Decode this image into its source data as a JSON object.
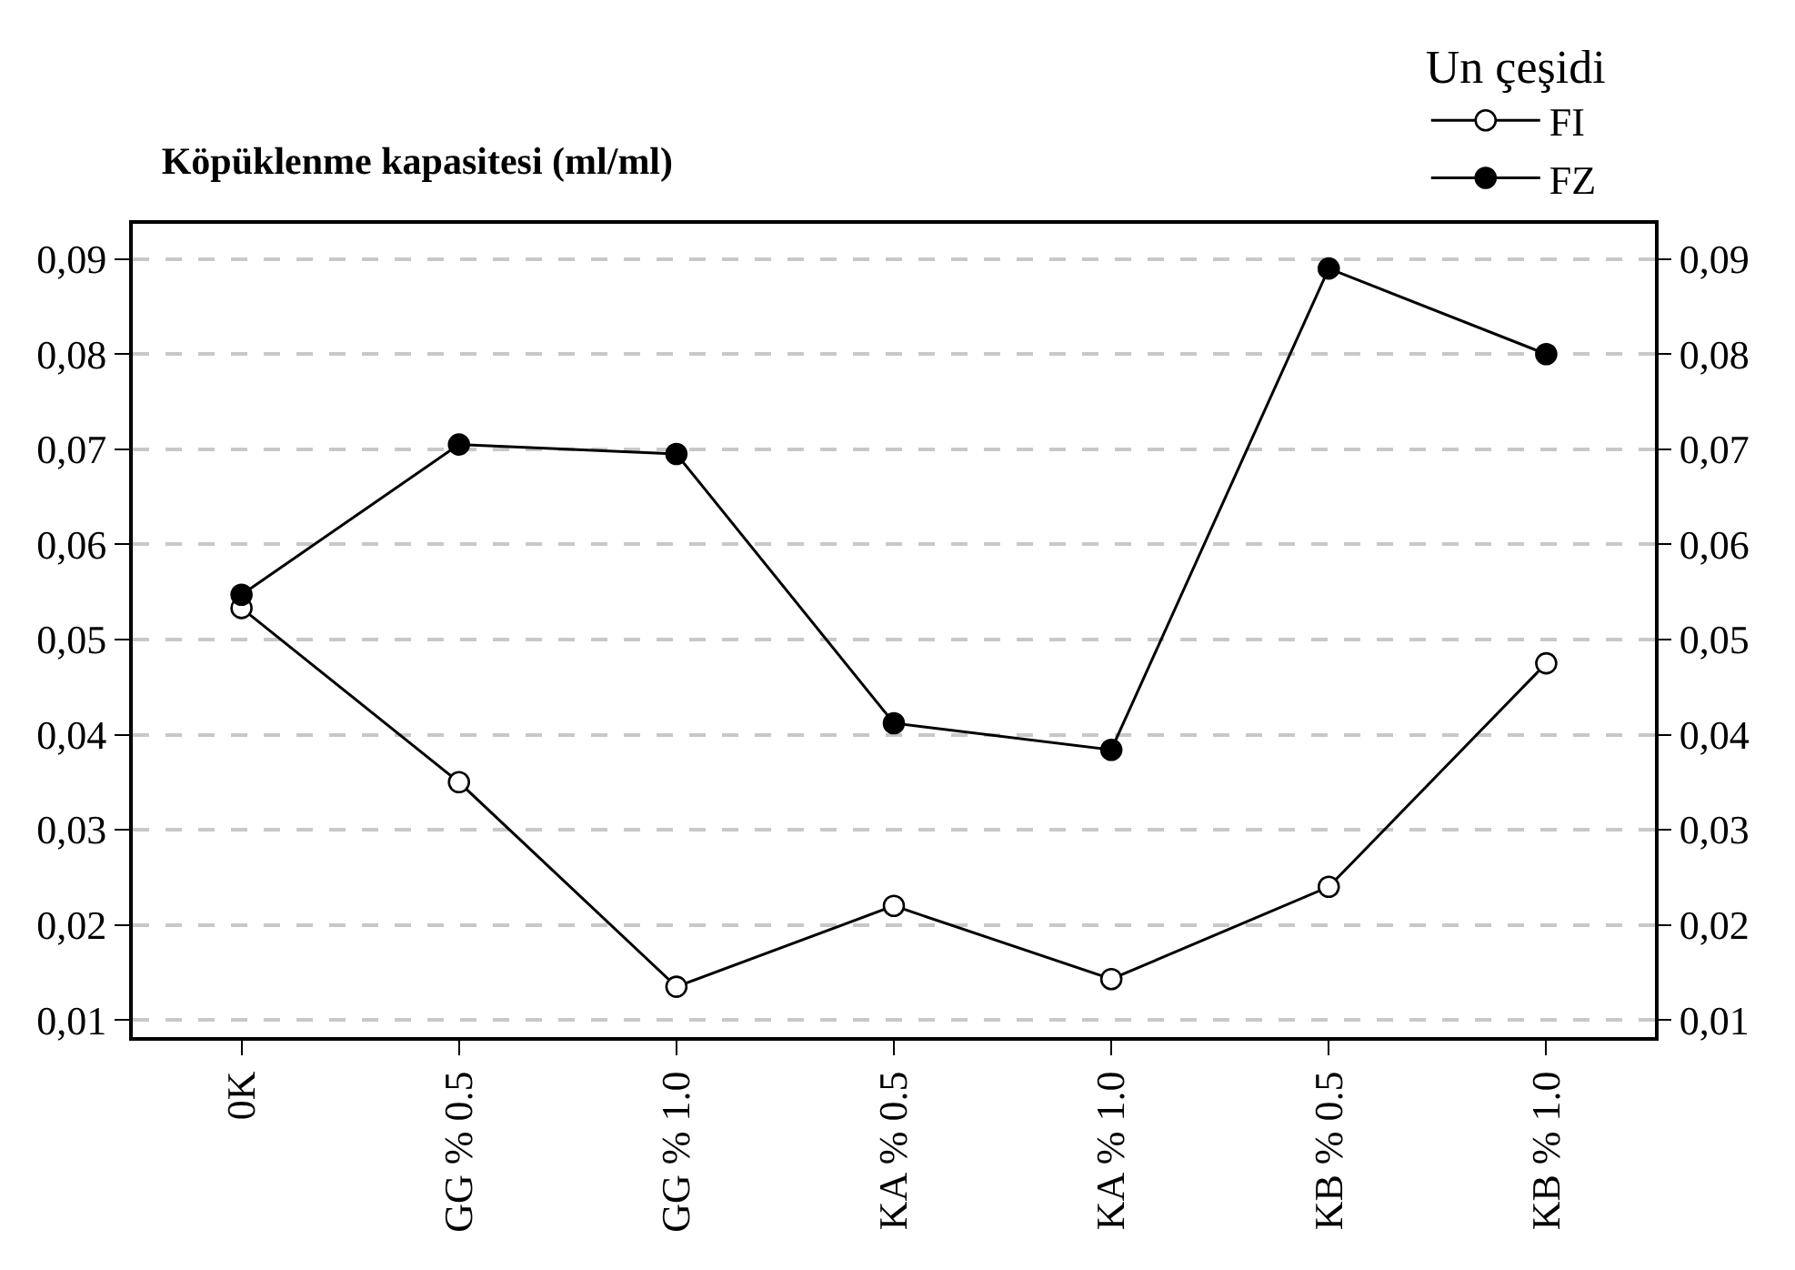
{
  "chart_data": {
    "type": "line",
    "title": "Köpüklenme kapasitesi (ml/ml)",
    "legend_title": "Un çeşidi",
    "categories": [
      "0K",
      "GG % 0.5",
      "GG % 1.0",
      "KA % 0.5",
      "KA % 1.0",
      "KB % 0.5",
      "KB % 1.0"
    ],
    "series": [
      {
        "name": "FI",
        "color": "#000000",
        "values": [
          0.0533,
          0.035,
          0.0135,
          0.022,
          0.0143,
          0.024,
          0.0475
        ]
      },
      {
        "name": "FZ",
        "color": "#000000",
        "values": [
          0.0547,
          0.0705,
          0.0695,
          0.0412,
          0.0384,
          0.089,
          0.08
        ]
      }
    ],
    "ylim": [
      0.0082,
      0.0937
    ],
    "yticks": [
      {
        "value": 0.01,
        "label": "0,01"
      },
      {
        "value": 0.02,
        "label": "0,02"
      },
      {
        "value": 0.03,
        "label": "0,03"
      },
      {
        "value": 0.04,
        "label": "0,04"
      },
      {
        "value": 0.05,
        "label": "0,05"
      },
      {
        "value": 0.06,
        "label": "0,06"
      },
      {
        "value": 0.07,
        "label": "0,07"
      },
      {
        "value": 0.08,
        "label": "0,08"
      },
      {
        "value": 0.09,
        "label": "0,09"
      }
    ],
    "y2lim": [
      0.0082,
      0.0937
    ],
    "y2ticks": [
      {
        "value": 0.01,
        "label": "0,01"
      },
      {
        "value": 0.02,
        "label": "0,02"
      },
      {
        "value": 0.03,
        "label": "0,03"
      },
      {
        "value": 0.04,
        "label": "0,04"
      },
      {
        "value": 0.05,
        "label": "0,05"
      },
      {
        "value": 0.06,
        "label": "0,06"
      },
      {
        "value": 0.07,
        "label": "0,07"
      },
      {
        "value": 0.08,
        "label": "0,08"
      },
      {
        "value": 0.09,
        "label": "0,09"
      }
    ],
    "grid": "y",
    "legend": "top right",
    "marker": "circle",
    "line_style": "solid"
  }
}
